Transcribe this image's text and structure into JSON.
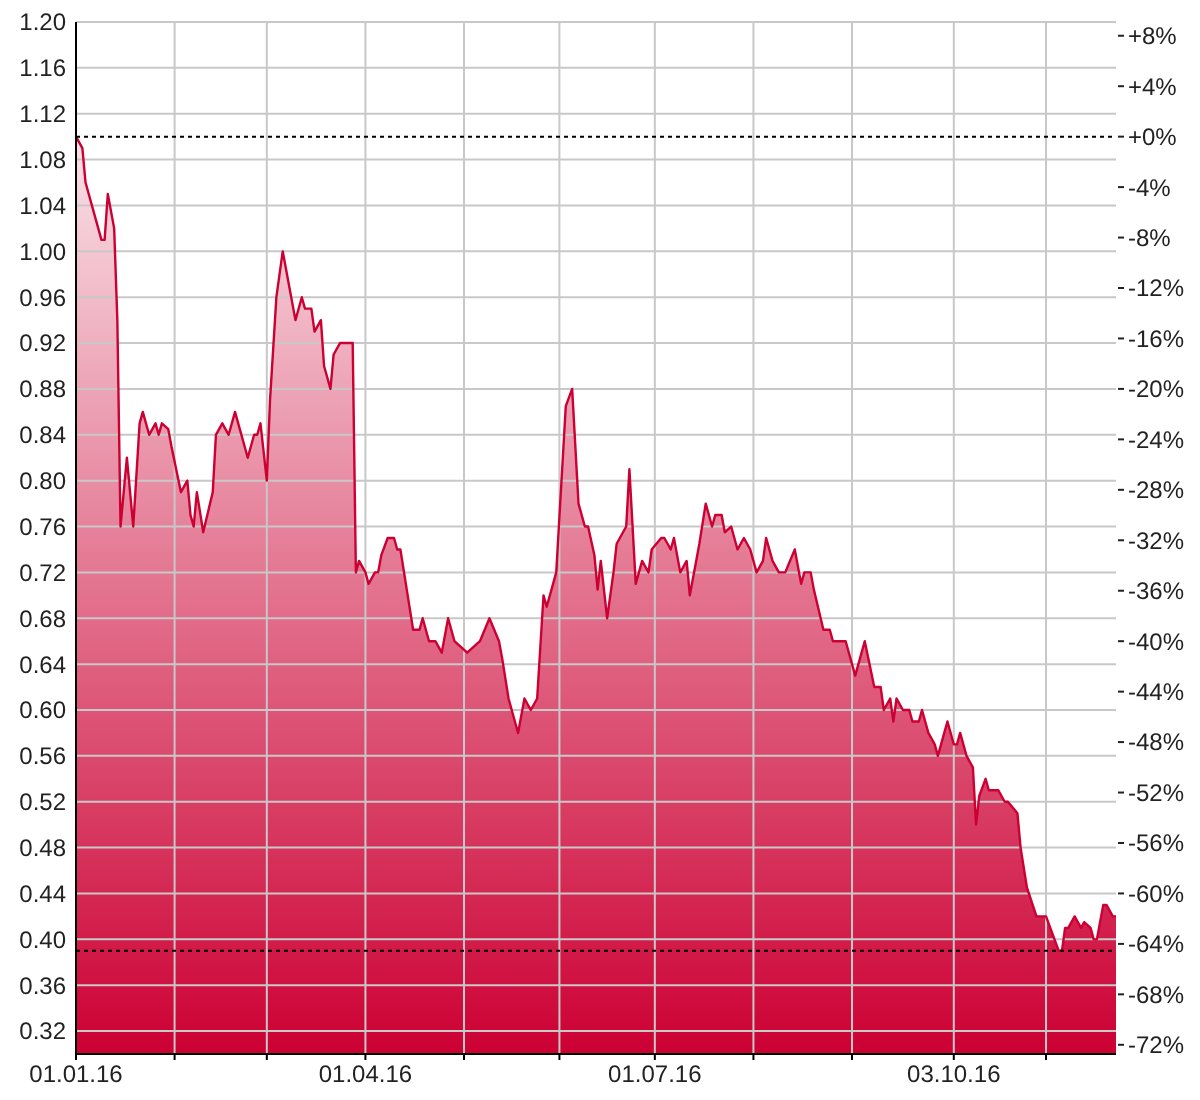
{
  "chart_data": {
    "type": "area",
    "x": [
      "2016-01-01",
      "2016-01-03",
      "2016-01-04",
      "2016-01-07",
      "2016-01-09",
      "2016-01-10",
      "2016-01-11",
      "2016-01-13",
      "2016-01-14",
      "2016-01-15",
      "2016-01-17",
      "2016-01-19",
      "2016-01-21",
      "2016-01-22",
      "2016-01-24",
      "2016-01-26",
      "2016-01-27",
      "2016-01-28",
      "2016-01-30",
      "2016-01-31",
      "2016-02-03",
      "2016-02-05",
      "2016-02-06",
      "2016-02-07",
      "2016-02-08",
      "2016-02-10",
      "2016-02-13",
      "2016-02-14",
      "2016-02-16",
      "2016-02-18",
      "2016-02-20",
      "2016-02-21",
      "2016-02-23",
      "2016-02-24",
      "2016-02-26",
      "2016-02-27",
      "2016-02-28",
      "2016-03-01",
      "2016-03-02",
      "2016-03-04",
      "2016-03-06",
      "2016-03-08",
      "2016-03-10",
      "2016-03-12",
      "2016-03-13",
      "2016-03-15",
      "2016-03-16",
      "2016-03-18",
      "2016-03-19",
      "2016-03-21",
      "2016-03-22",
      "2016-03-24",
      "2016-03-28",
      "2016-03-29",
      "2016-03-30",
      "2016-04-01",
      "2016-04-02",
      "2016-04-04",
      "2016-04-05",
      "2016-04-06",
      "2016-04-08",
      "2016-04-10",
      "2016-04-11",
      "2016-04-12",
      "2016-04-14",
      "2016-04-16",
      "2016-04-18",
      "2016-04-19",
      "2016-04-21",
      "2016-04-23",
      "2016-04-25",
      "2016-04-27",
      "2016-04-29",
      "2016-05-03",
      "2016-05-05",
      "2016-05-07",
      "2016-05-10",
      "2016-05-13",
      "2016-05-14",
      "2016-05-16",
      "2016-05-18",
      "2016-05-19",
      "2016-05-21",
      "2016-05-23",
      "2016-05-25",
      "2016-05-27",
      "2016-05-28",
      "2016-05-30",
      "2016-05-31",
      "2016-06-03",
      "2016-06-05",
      "2016-06-07",
      "2016-06-09",
      "2016-06-10",
      "2016-06-12",
      "2016-06-13",
      "2016-06-14",
      "2016-06-16",
      "2016-06-18",
      "2016-06-19",
      "2016-06-22",
      "2016-06-23",
      "2016-06-25",
      "2016-06-27",
      "2016-06-29",
      "2016-06-30",
      "2016-07-03",
      "2016-07-04",
      "2016-07-06",
      "2016-07-07",
      "2016-07-09",
      "2016-07-11",
      "2016-07-12",
      "2016-07-14",
      "2016-07-15",
      "2016-07-17",
      "2016-07-19",
      "2016-07-20",
      "2016-07-22",
      "2016-07-23",
      "2016-07-25",
      "2016-07-26",
      "2016-07-27",
      "2016-07-29",
      "2016-07-31",
      "2016-08-02",
      "2016-08-04",
      "2016-08-05",
      "2016-08-07",
      "2016-08-09",
      "2016-08-11",
      "2016-08-14",
      "2016-08-16",
      "2016-08-17",
      "2016-08-19",
      "2016-08-20",
      "2016-08-23",
      "2016-08-25",
      "2016-08-26",
      "2016-08-30",
      "2016-09-02",
      "2016-09-05",
      "2016-09-08",
      "2016-09-10",
      "2016-09-11",
      "2016-09-13",
      "2016-09-14",
      "2016-09-15",
      "2016-09-17",
      "2016-09-19",
      "2016-09-20",
      "2016-09-22",
      "2016-09-23",
      "2016-09-25",
      "2016-09-27",
      "2016-09-28",
      "2016-09-30",
      "2016-10-01",
      "2016-10-03",
      "2016-10-04",
      "2016-10-05",
      "2016-10-07",
      "2016-10-09",
      "2016-10-10",
      "2016-10-11",
      "2016-10-13",
      "2016-10-14",
      "2016-10-17",
      "2016-10-19",
      "2016-10-20",
      "2016-10-23",
      "2016-10-24",
      "2016-10-26",
      "2016-10-29",
      "2016-11-01",
      "2016-11-03",
      "2016-11-05",
      "2016-11-06",
      "2016-11-07",
      "2016-11-08",
      "2016-11-10",
      "2016-11-12",
      "2016-11-13",
      "2016-11-15",
      "2016-11-16",
      "2016-11-17",
      "2016-11-19",
      "2016-11-20",
      "2016-11-22",
      "2016-11-23"
    ],
    "series": [
      {
        "color": "#cc0033",
        "values": [
          1.1,
          1.09,
          1.06,
          1.03,
          1.01,
          1.01,
          1.05,
          1.02,
          0.94,
          0.76,
          0.82,
          0.76,
          0.85,
          0.86,
          0.84,
          0.85,
          0.84,
          0.85,
          0.845,
          0.83,
          0.79,
          0.8,
          0.77,
          0.76,
          0.79,
          0.755,
          0.79,
          0.84,
          0.85,
          0.84,
          0.86,
          0.85,
          0.83,
          0.82,
          0.84,
          0.84,
          0.85,
          0.8,
          0.87,
          0.96,
          1.0,
          0.97,
          0.94,
          0.96,
          0.95,
          0.95,
          0.93,
          0.94,
          0.9,
          0.88,
          0.91,
          0.92,
          0.92,
          0.72,
          0.73,
          0.72,
          0.71,
          0.72,
          0.72,
          0.735,
          0.75,
          0.75,
          0.74,
          0.74,
          0.705,
          0.67,
          0.67,
          0.68,
          0.66,
          0.66,
          0.65,
          0.68,
          0.66,
          0.65,
          0.655,
          0.66,
          0.68,
          0.66,
          0.645,
          0.61,
          0.59,
          0.58,
          0.61,
          0.6,
          0.61,
          0.7,
          0.69,
          0.71,
          0.72,
          0.865,
          0.88,
          0.78,
          0.76,
          0.76,
          0.735,
          0.705,
          0.73,
          0.68,
          0.72,
          0.745,
          0.76,
          0.81,
          0.71,
          0.73,
          0.72,
          0.74,
          0.75,
          0.75,
          0.74,
          0.75,
          0.72,
          0.73,
          0.7,
          0.73,
          0.745,
          0.78,
          0.76,
          0.77,
          0.77,
          0.755,
          0.76,
          0.75,
          0.74,
          0.75,
          0.74,
          0.72,
          0.73,
          0.75,
          0.73,
          0.72,
          0.72,
          0.74,
          0.71,
          0.72,
          0.72,
          0.705,
          0.67,
          0.67,
          0.66,
          0.66,
          0.63,
          0.66,
          0.62,
          0.62,
          0.6,
          0.61,
          0.59,
          0.61,
          0.6,
          0.6,
          0.59,
          0.59,
          0.6,
          0.58,
          0.57,
          0.56,
          0.58,
          0.59,
          0.57,
          0.57,
          0.58,
          0.56,
          0.55,
          0.5,
          0.525,
          0.54,
          0.53,
          0.53,
          0.52,
          0.52,
          0.51,
          0.48,
          0.445,
          0.42,
          0.42,
          0.405,
          0.39,
          0.39,
          0.41,
          0.41,
          0.42,
          0.41,
          0.415,
          0.41,
          0.4,
          0.4,
          0.43,
          0.43,
          0.42,
          0.42
        ]
      }
    ],
    "xlim": [
      "2016-01-01",
      "2016-11-23"
    ],
    "xticks": [
      {
        "value": "2016-01-01",
        "label": "01.01.16"
      },
      {
        "value": "2016-02-01",
        "label": null
      },
      {
        "value": "2016-03-01",
        "label": null
      },
      {
        "value": "2016-04-01",
        "label": "01.04.16"
      },
      {
        "value": "2016-05-02",
        "label": null
      },
      {
        "value": "2016-06-01",
        "label": null
      },
      {
        "value": "2016-07-01",
        "label": "01.07.16"
      },
      {
        "value": "2016-08-01",
        "label": null
      },
      {
        "value": "2016-09-01",
        "label": null
      },
      {
        "value": "2016-10-03",
        "label": "03.10.16"
      },
      {
        "value": "2016-11-01",
        "label": null
      }
    ],
    "ylim": [
      0.3,
      1.2
    ],
    "yticks": [
      0.32,
      0.36,
      {
        "value": 0.4,
        "label": "0.40"
      },
      0.44,
      0.48,
      0.52,
      0.56,
      {
        "value": 0.6,
        "label": "0.60"
      },
      0.64,
      0.68,
      0.72,
      0.76,
      {
        "value": 0.8,
        "label": "0.80"
      },
      0.84,
      0.88,
      0.92,
      0.96,
      {
        "value": 1.0,
        "label": "1.00"
      },
      1.04,
      1.08,
      1.12,
      1.16,
      {
        "value": 1.2,
        "label": "1.20"
      }
    ],
    "y2lim": [
      -72.73,
      9.09
    ],
    "y2ticks": [
      {
        "value": 8,
        "label": "+8%"
      },
      {
        "value": 4,
        "label": "+4%"
      },
      {
        "value": 0,
        "label": "+0%"
      },
      {
        "value": -4,
        "label": "-4%"
      },
      {
        "value": -8,
        "label": "-8%"
      },
      {
        "value": -12,
        "label": "-12%"
      },
      {
        "value": -16,
        "label": "-16%"
      },
      {
        "value": -20,
        "label": "-20%"
      },
      {
        "value": -24,
        "label": "-24%"
      },
      {
        "value": -28,
        "label": "-28%"
      },
      {
        "value": -32,
        "label": "-32%"
      },
      {
        "value": -36,
        "label": "-36%"
      },
      {
        "value": -40,
        "label": "-40%"
      },
      {
        "value": -44,
        "label": "-44%"
      },
      {
        "value": -48,
        "label": "-48%"
      },
      {
        "value": -52,
        "label": "-52%"
      },
      {
        "value": -56,
        "label": "-56%"
      },
      {
        "value": -60,
        "label": "-60%"
      },
      {
        "value": -64,
        "label": "-64%"
      },
      {
        "value": -68,
        "label": "-68%"
      },
      {
        "value": -72,
        "label": "-72%"
      }
    ],
    "ref_lines": [
      {
        "axis": "y",
        "value": 1.1,
        "color": "#000000",
        "line_style": "dotted"
      },
      {
        "axis": "y",
        "value": 0.39,
        "color": "#000000",
        "line_style": "dotted"
      }
    ],
    "grid": true
  }
}
